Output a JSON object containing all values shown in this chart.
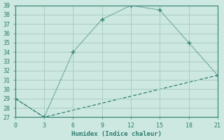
{
  "xlabel": "Humidex (Indice chaleur)",
  "line1_x": [
    0,
    3,
    6,
    9,
    12,
    15,
    18,
    21
  ],
  "line1_y": [
    29,
    27,
    34,
    37.5,
    39,
    38.5,
    35,
    31.5
  ],
  "line2_x": [
    0,
    3,
    21
  ],
  "line2_y": [
    29,
    27,
    31.5
  ],
  "line_color": "#2e7d6e",
  "bg_color": "#cce8e0",
  "grid_color": "#aaccc4",
  "xlim": [
    0,
    21
  ],
  "ylim": [
    27,
    39
  ],
  "xticks": [
    0,
    3,
    6,
    9,
    12,
    15,
    18,
    21
  ],
  "yticks": [
    27,
    28,
    29,
    30,
    31,
    32,
    33,
    34,
    35,
    36,
    37,
    38,
    39
  ]
}
